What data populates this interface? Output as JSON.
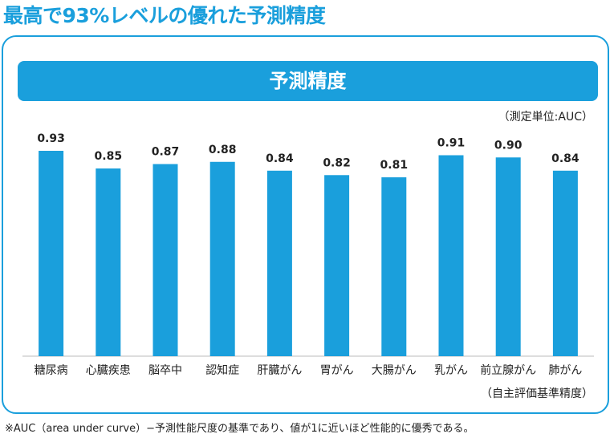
{
  "headline": "最高で93%レベルの優れた予測精度",
  "colors": {
    "accent": "#1a9fdc",
    "bar": "#1a9fdc",
    "text": "#222222"
  },
  "chart_data": {
    "type": "bar",
    "title": "予測精度",
    "unit_note": "（測定単位:AUC）",
    "source_note": "（自主評価基準精度）",
    "categories": [
      "糖尿病",
      "心臓疾患",
      "脳卒中",
      "認知症",
      "肝臓がん",
      "胃がん",
      "大腸がん",
      "乳がん",
      "前立腺がん",
      "肺がん"
    ],
    "values": [
      0.93,
      0.85,
      0.87,
      0.88,
      0.84,
      0.82,
      0.81,
      0.91,
      0.9,
      0.84
    ],
    "value_labels": [
      "0.93",
      "0.85",
      "0.87",
      "0.88",
      "0.84",
      "0.82",
      "0.81",
      "0.91",
      "0.90",
      "0.84"
    ],
    "ylim": [
      0,
      0.93
    ],
    "grid": false
  },
  "footnote": "※AUC（area under curve）−予測性能尺度の基準であり、値が1に近いほど性能的に優秀である。"
}
